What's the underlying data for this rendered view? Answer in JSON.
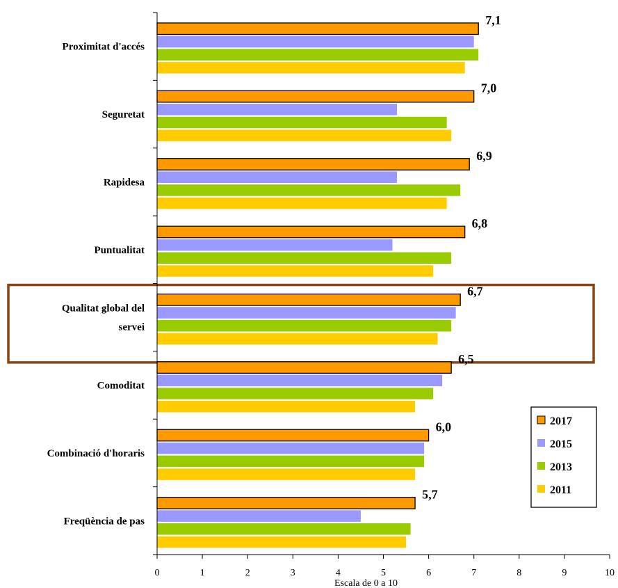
{
  "chart_data": {
    "type": "bar",
    "orientation": "horizontal",
    "categories": [
      "Proximitat d'accés",
      "Seguretat",
      "Rapidesa",
      "Puntualitat",
      "Qualitat global del servei",
      "Comoditat",
      "Combinació d'horaris",
      "Freqüència de pas"
    ],
    "category_label_lines": [
      [
        "Proximitat d'accés"
      ],
      [
        "Seguretat"
      ],
      [
        "Rapidesa"
      ],
      [
        "Puntualitat"
      ],
      [
        "Qualitat global del",
        "servei"
      ],
      [
        "Comoditat"
      ],
      [
        "Combinació d'horaris"
      ],
      [
        "Freqüència de pas"
      ]
    ],
    "series": [
      {
        "name": "2017",
        "color": "#FF9900",
        "values": [
          7.1,
          7.0,
          6.9,
          6.8,
          6.7,
          6.5,
          6.0,
          5.7
        ]
      },
      {
        "name": "2015",
        "color": "#9999FF",
        "values": [
          7.0,
          5.3,
          5.3,
          5.2,
          6.6,
          6.3,
          5.9,
          4.5
        ]
      },
      {
        "name": "2013",
        "color": "#99CC00",
        "values": [
          7.1,
          6.4,
          6.7,
          6.5,
          6.5,
          6.1,
          5.9,
          5.6
        ]
      },
      {
        "name": "2011",
        "color": "#FFCC00",
        "values": [
          6.8,
          6.5,
          6.4,
          6.1,
          6.2,
          5.7,
          5.7,
          5.5
        ]
      }
    ],
    "data_labels": [
      "7,1",
      "7,0",
      "6,9",
      "6,8",
      "6,7",
      "6,5",
      "6,0",
      "5,7"
    ],
    "xlabel": "Escala de 0 a 10",
    "ylabel": "",
    "xlim": [
      0,
      10
    ],
    "xticks": [
      "0",
      "1",
      "2",
      "3",
      "4",
      "5",
      "6",
      "7",
      "8",
      "9",
      "10"
    ],
    "highlighted_category": "Qualitat global del servei",
    "highlight_color": "#8B4513",
    "legend_position": "bottom-right",
    "legend_order": [
      "2017",
      "2015",
      "2013",
      "2011"
    ],
    "grid": false
  }
}
